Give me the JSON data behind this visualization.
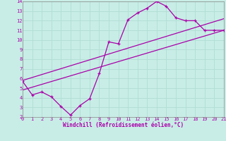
{
  "xlabel": "Windchill (Refroidissement éolien,°C)",
  "xlim": [
    0,
    21
  ],
  "ylim": [
    2,
    14
  ],
  "xticks": [
    0,
    1,
    2,
    3,
    4,
    5,
    6,
    7,
    8,
    9,
    10,
    11,
    12,
    13,
    14,
    15,
    16,
    17,
    18,
    19,
    20,
    21
  ],
  "yticks": [
    2,
    3,
    4,
    5,
    6,
    7,
    8,
    9,
    10,
    11,
    12,
    13,
    14
  ],
  "bg_color": "#c8ede6",
  "line_color": "#aa00aa",
  "grid_color": "#b0ddd4",
  "line1_x": [
    0,
    1,
    2,
    3,
    4,
    5,
    6,
    7,
    8,
    9,
    10,
    11,
    12,
    13,
    14,
    15,
    16,
    17,
    18,
    19,
    20,
    21
  ],
  "line1_y": [
    5.7,
    4.3,
    4.6,
    4.1,
    3.1,
    2.2,
    3.2,
    3.9,
    6.5,
    9.8,
    9.6,
    12.1,
    12.8,
    13.3,
    14.0,
    13.5,
    12.3,
    12.0,
    12.0,
    11.0,
    11.0,
    11.0
  ],
  "line2_x": [
    0,
    21
  ],
  "line2_y": [
    4.8,
    11.0
  ],
  "line3_x": [
    0,
    21
  ],
  "line3_y": [
    5.8,
    12.2
  ],
  "lw": 0.9,
  "marker_size": 3.5
}
